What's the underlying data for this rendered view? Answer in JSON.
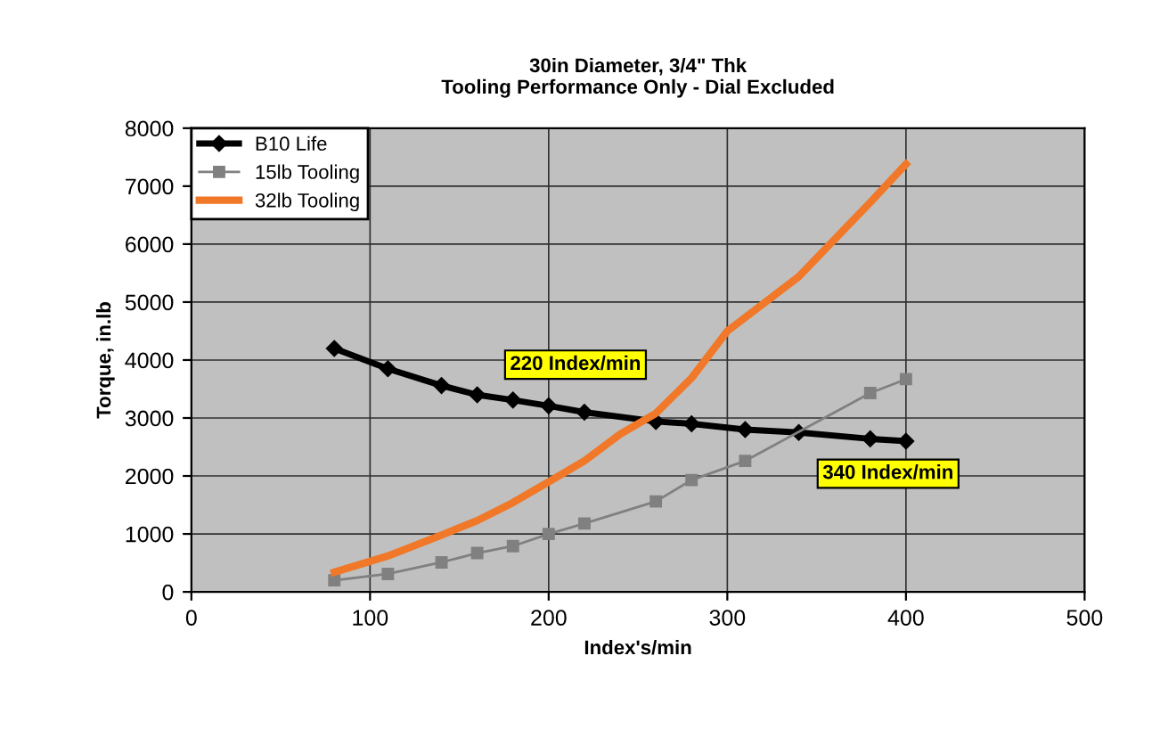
{
  "chart_data": {
    "type": "line",
    "title": "30in Diameter, 3/4\" Thk\nTooling Performance Only - Dial Excluded",
    "xlabel": "Index's/min",
    "ylabel": "Torque, in.lb",
    "xlim": [
      0,
      500
    ],
    "xticks": [
      0,
      100,
      200,
      300,
      400,
      500
    ],
    "ylim": [
      0,
      8000
    ],
    "yticks": [
      0,
      1000,
      2000,
      3000,
      4000,
      5000,
      6000,
      7000,
      8000
    ],
    "grid": true,
    "legend": "top left",
    "series": [
      {
        "name": "B10 Life",
        "color": "#000000",
        "marker": "diamond",
        "x": [
          80,
          110,
          140,
          160,
          180,
          200,
          220,
          260,
          280,
          310,
          340,
          380,
          400
        ],
        "values": [
          4200,
          3850,
          3560,
          3400,
          3310,
          3210,
          3100,
          2940,
          2900,
          2800,
          2750,
          2640,
          2600
        ]
      },
      {
        "name": "15lb Tooling",
        "color": "#808080",
        "marker": "square",
        "x": [
          80,
          110,
          140,
          160,
          180,
          200,
          220,
          260,
          280,
          310,
          380,
          400
        ],
        "values": [
          200,
          310,
          510,
          670,
          790,
          1000,
          1180,
          1560,
          1930,
          2260,
          3430,
          3670
        ]
      },
      {
        "name": "32lb Tooling",
        "color": "#f07828",
        "marker": "none",
        "x": [
          80,
          110,
          140,
          160,
          180,
          200,
          220,
          240,
          260,
          280,
          300,
          340,
          380,
          400
        ],
        "values": [
          340,
          620,
          980,
          1230,
          1540,
          1900,
          2260,
          2720,
          3080,
          3690,
          4500,
          5440,
          6720,
          7380
        ]
      }
    ],
    "annotations": [
      "220 Index/min",
      "340 Index/min"
    ]
  }
}
